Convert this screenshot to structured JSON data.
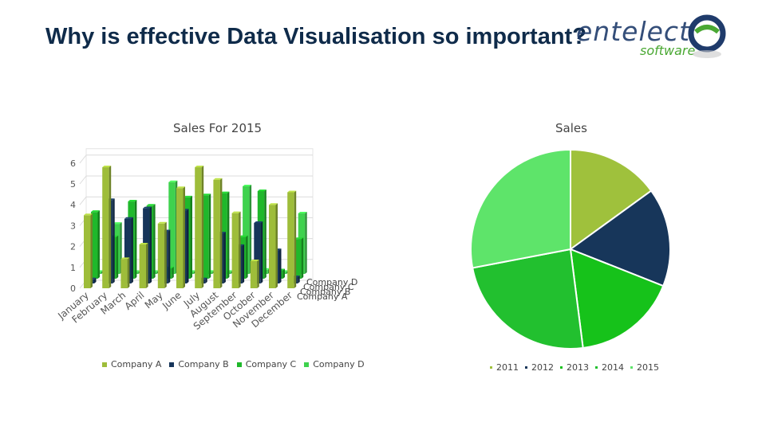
{
  "slide": {
    "title": "Why is effective Data Visualisation so important?",
    "logo_text": "entelect",
    "logo_subtext": "software"
  },
  "colors": {
    "company_a": "#9ebd3a",
    "company_b": "#16355a",
    "company_c": "#1fb82b",
    "company_d": "#3fd24e",
    "pie_2011": "#9fc13c",
    "pie_2012": "#17365a",
    "pie_2013": "#16c21a",
    "pie_2014": "#22c02f",
    "pie_2015": "#5ee46a"
  },
  "chart_data": [
    {
      "type": "bar",
      "title": "Sales For 2015",
      "categories": [
        "January",
        "February",
        "March",
        "April",
        "May",
        "June",
        "July",
        "August",
        "September",
        "October",
        "November",
        "December"
      ],
      "series": [
        {
          "name": "Company A",
          "values": [
            3.5,
            5.8,
            1.4,
            2.1,
            3.1,
            4.8,
            5.8,
            5.2,
            3.6,
            1.3,
            4.0,
            4.6
          ]
        },
        {
          "name": "Company B",
          "values": [
            0.2,
            4.0,
            3.1,
            3.6,
            2.5,
            3.5,
            0.2,
            2.4,
            1.8,
            2.9,
            1.6,
            0.3
          ]
        },
        {
          "name": "Company C",
          "values": [
            3.2,
            2.0,
            3.7,
            3.5,
            0.5,
            3.9,
            4.0,
            4.1,
            2.0,
            4.2,
            0.4,
            1.9
          ]
        },
        {
          "name": "Company D",
          "values": [
            0.1,
            2.4,
            0.1,
            0.1,
            4.4,
            0.1,
            0.1,
            0.1,
            4.2,
            0.2,
            0.1,
            2.9
          ]
        }
      ],
      "yticks": [
        "0",
        "1",
        "2",
        "3",
        "4",
        "5",
        "6"
      ],
      "ylim": [
        0,
        6
      ],
      "depth_axis_labels": [
        "Company D",
        "Company C",
        "Company B",
        "Company A"
      ],
      "legend": [
        "Company A",
        "Company B",
        "Company C",
        "Company D"
      ],
      "legend_position": "bottom",
      "grid": true
    },
    {
      "type": "pie",
      "title": "Sales",
      "labels": [
        "2011",
        "2012",
        "2013",
        "2014",
        "2015"
      ],
      "values": [
        15,
        16,
        17,
        24,
        28
      ],
      "legend_position": "bottom"
    }
  ]
}
